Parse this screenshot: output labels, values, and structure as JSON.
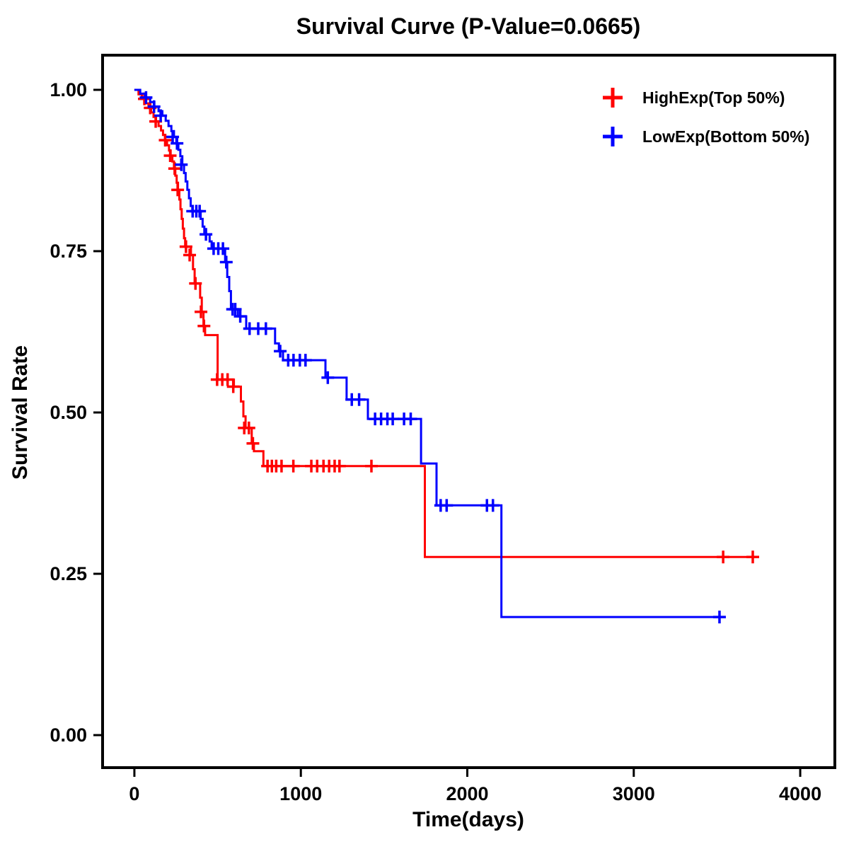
{
  "chart_data": {
    "type": "line",
    "subtype": "kaplan-meier-step-survival",
    "title": "Survival Curve (P-Value=0.0665)",
    "p_value": "0.0665",
    "xlabel": "Time(days)",
    "ylabel": "Survival Rate",
    "xlim": [
      -191,
      4208
    ],
    "ylim": [
      -0.0504,
      1.0537
    ],
    "grid": false,
    "legend_position": "top-right-inside",
    "xticks": [
      {
        "value": 0,
        "label": "0"
      },
      {
        "value": 1000,
        "label": "1000"
      },
      {
        "value": 2000,
        "label": "2000"
      },
      {
        "value": 3000,
        "label": "3000"
      },
      {
        "value": 4000,
        "label": "4000"
      }
    ],
    "yticks": [
      {
        "value": 0.0,
        "label": "0.00"
      },
      {
        "value": 0.25,
        "label": "0.25"
      },
      {
        "value": 0.5,
        "label": "0.50"
      },
      {
        "value": 0.75,
        "label": "0.75"
      },
      {
        "value": 1.0,
        "label": "1.00"
      }
    ],
    "series": [
      {
        "id": "highexp",
        "name": "HighExp(Top 50%)",
        "color": "#FF0000",
        "end_time": 3720,
        "steps": [
          [
            0,
            1.0
          ],
          [
            25,
            0.993
          ],
          [
            45,
            0.986
          ],
          [
            65,
            0.979
          ],
          [
            85,
            0.972
          ],
          [
            100,
            0.965
          ],
          [
            115,
            0.958
          ],
          [
            130,
            0.951
          ],
          [
            145,
            0.944
          ],
          [
            160,
            0.937
          ],
          [
            172,
            0.93
          ],
          [
            184,
            0.922
          ],
          [
            196,
            0.914
          ],
          [
            208,
            0.906
          ],
          [
            218,
            0.898
          ],
          [
            228,
            0.889
          ],
          [
            238,
            0.878
          ],
          [
            246,
            0.867
          ],
          [
            254,
            0.856
          ],
          [
            262,
            0.845
          ],
          [
            270,
            0.83
          ],
          [
            277,
            0.815
          ],
          [
            284,
            0.8
          ],
          [
            291,
            0.785
          ],
          [
            298,
            0.77
          ],
          [
            305,
            0.757
          ],
          [
            340,
            0.744
          ],
          [
            352,
            0.722
          ],
          [
            362,
            0.7
          ],
          [
            395,
            0.678
          ],
          [
            405,
            0.656
          ],
          [
            415,
            0.634
          ],
          [
            425,
            0.62
          ],
          [
            500,
            0.551
          ],
          [
            598,
            0.54
          ],
          [
            640,
            0.517
          ],
          [
            655,
            0.494
          ],
          [
            668,
            0.476
          ],
          [
            705,
            0.452
          ],
          [
            718,
            0.44
          ],
          [
            775,
            0.417
          ],
          [
            1745,
            0.276
          ]
        ],
        "censors": [
          [
            60,
            0.986
          ],
          [
            95,
            0.972
          ],
          [
            128,
            0.951
          ],
          [
            185,
            0.922
          ],
          [
            215,
            0.898
          ],
          [
            242,
            0.878
          ],
          [
            260,
            0.845
          ],
          [
            310,
            0.757
          ],
          [
            332,
            0.744
          ],
          [
            367,
            0.7
          ],
          [
            400,
            0.656
          ],
          [
            418,
            0.634
          ],
          [
            497,
            0.551
          ],
          [
            528,
            0.551
          ],
          [
            560,
            0.551
          ],
          [
            594,
            0.54
          ],
          [
            660,
            0.476
          ],
          [
            688,
            0.476
          ],
          [
            712,
            0.452
          ],
          [
            800,
            0.417
          ],
          [
            826,
            0.417
          ],
          [
            852,
            0.417
          ],
          [
            884,
            0.417
          ],
          [
            955,
            0.417
          ],
          [
            1063,
            0.417
          ],
          [
            1098,
            0.417
          ],
          [
            1136,
            0.417
          ],
          [
            1170,
            0.417
          ],
          [
            1203,
            0.417
          ],
          [
            1232,
            0.417
          ],
          [
            1424,
            0.417
          ],
          [
            3537,
            0.276
          ],
          [
            3715,
            0.276
          ]
        ]
      },
      {
        "id": "lowexp",
        "name": "LowExp(Bottom 50%)",
        "color": "#0000FF",
        "end_time": 3520,
        "steps": [
          [
            0,
            1.0
          ],
          [
            35,
            0.994
          ],
          [
            65,
            0.988
          ],
          [
            95,
            0.981
          ],
          [
            120,
            0.974
          ],
          [
            145,
            0.967
          ],
          [
            168,
            0.96
          ],
          [
            188,
            0.952
          ],
          [
            205,
            0.944
          ],
          [
            222,
            0.936
          ],
          [
            238,
            0.927
          ],
          [
            252,
            0.917
          ],
          [
            264,
            0.907
          ],
          [
            276,
            0.897
          ],
          [
            288,
            0.884
          ],
          [
            298,
            0.871
          ],
          [
            308,
            0.858
          ],
          [
            318,
            0.845
          ],
          [
            328,
            0.832
          ],
          [
            338,
            0.82
          ],
          [
            348,
            0.812
          ],
          [
            398,
            0.8
          ],
          [
            410,
            0.788
          ],
          [
            420,
            0.776
          ],
          [
            452,
            0.765
          ],
          [
            464,
            0.754
          ],
          [
            545,
            0.733
          ],
          [
            558,
            0.71
          ],
          [
            570,
            0.688
          ],
          [
            580,
            0.66
          ],
          [
            622,
            0.649
          ],
          [
            672,
            0.63
          ],
          [
            845,
            0.607
          ],
          [
            868,
            0.595
          ],
          [
            893,
            0.581
          ],
          [
            1148,
            0.554
          ],
          [
            1275,
            0.52
          ],
          [
            1403,
            0.49
          ],
          [
            1722,
            0.421
          ],
          [
            1815,
            0.356
          ],
          [
            2205,
            0.183
          ]
        ],
        "censors": [
          [
            70,
            0.988
          ],
          [
            118,
            0.974
          ],
          [
            158,
            0.96
          ],
          [
            230,
            0.927
          ],
          [
            256,
            0.917
          ],
          [
            282,
            0.884
          ],
          [
            350,
            0.812
          ],
          [
            372,
            0.812
          ],
          [
            392,
            0.812
          ],
          [
            430,
            0.776
          ],
          [
            476,
            0.754
          ],
          [
            504,
            0.754
          ],
          [
            532,
            0.754
          ],
          [
            552,
            0.733
          ],
          [
            590,
            0.66
          ],
          [
            606,
            0.66
          ],
          [
            636,
            0.649
          ],
          [
            692,
            0.63
          ],
          [
            744,
            0.63
          ],
          [
            790,
            0.63
          ],
          [
            876,
            0.595
          ],
          [
            924,
            0.581
          ],
          [
            956,
            0.581
          ],
          [
            994,
            0.581
          ],
          [
            1028,
            0.581
          ],
          [
            1162,
            0.554
          ],
          [
            1306,
            0.52
          ],
          [
            1350,
            0.52
          ],
          [
            1446,
            0.49
          ],
          [
            1482,
            0.49
          ],
          [
            1520,
            0.49
          ],
          [
            1552,
            0.49
          ],
          [
            1620,
            0.49
          ],
          [
            1660,
            0.49
          ],
          [
            1840,
            0.356
          ],
          [
            1876,
            0.356
          ],
          [
            2118,
            0.356
          ],
          [
            2154,
            0.356
          ],
          [
            3515,
            0.183
          ]
        ]
      }
    ]
  }
}
